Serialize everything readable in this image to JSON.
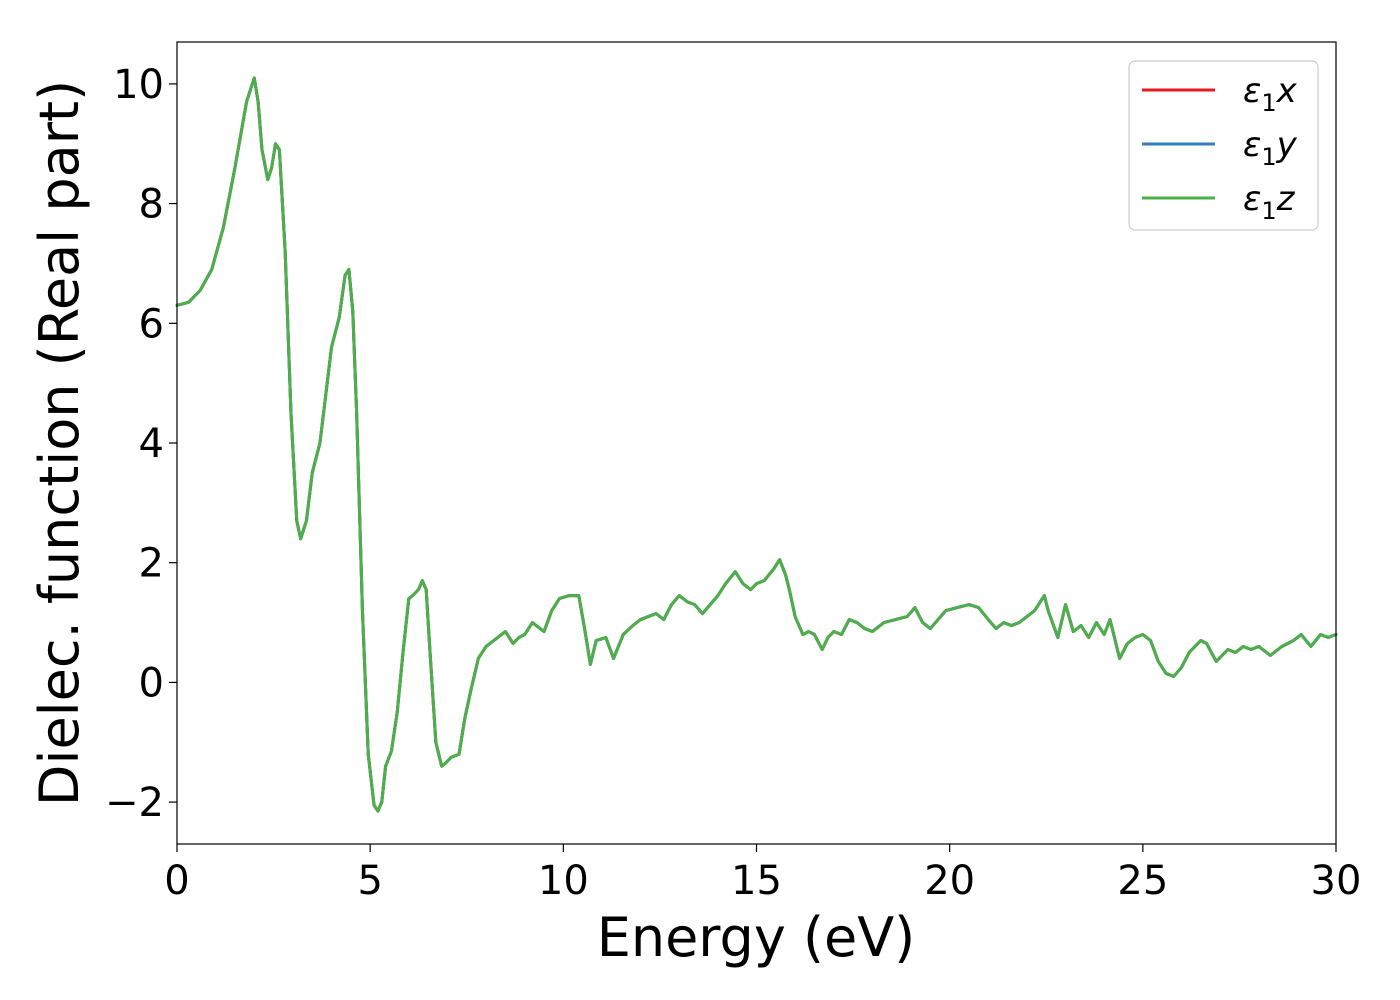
{
  "chart_data": {
    "type": "line",
    "title": "",
    "xlabel": "Energy (eV)",
    "ylabel": "Dielec. function (Real part)",
    "xlim": [
      0,
      30
    ],
    "ylim": [
      -2.7,
      10.7
    ],
    "xticks": [
      0,
      5,
      10,
      15,
      20,
      25,
      30
    ],
    "xtick_labels": [
      "0",
      "5",
      "10",
      "15",
      "20",
      "25",
      "30"
    ],
    "yticks": [
      -2,
      0,
      2,
      4,
      6,
      8,
      10
    ],
    "ytick_labels": [
      "−2",
      "0",
      "2",
      "4",
      "6",
      "8",
      "10"
    ],
    "grid": false,
    "legend_position": "top-right",
    "legend_label_base": "ε",
    "legend_label_sub": "1",
    "series": [
      {
        "name": "ε1x",
        "suffix": "x",
        "color": "#e41a1c",
        "ref": "shared"
      },
      {
        "name": "ε1y",
        "suffix": "y",
        "color": "#377eb8",
        "ref": "shared"
      },
      {
        "name": "ε1z",
        "suffix": "z",
        "color": "#4daf4a",
        "ref": "shared"
      }
    ],
    "x": [
      0,
      0.3,
      0.6,
      0.9,
      1.2,
      1.5,
      1.8,
      2.0,
      2.1,
      2.2,
      2.35,
      2.45,
      2.55,
      2.65,
      2.8,
      2.95,
      3.1,
      3.2,
      3.35,
      3.5,
      3.7,
      3.85,
      4.0,
      4.2,
      4.35,
      4.45,
      4.55,
      4.65,
      4.8,
      4.95,
      5.1,
      5.2,
      5.3,
      5.4,
      5.55,
      5.7,
      5.85,
      6.0,
      6.1,
      6.25,
      6.35,
      6.45,
      6.55,
      6.7,
      6.85,
      6.95,
      7.1,
      7.3,
      7.45,
      7.6,
      7.8,
      8.0,
      8.2,
      8.5,
      8.7,
      8.85,
      9.0,
      9.2,
      9.5,
      9.7,
      9.9,
      10.15,
      10.4,
      10.55,
      10.7,
      10.85,
      11.1,
      11.3,
      11.55,
      11.8,
      12.0,
      12.2,
      12.4,
      12.6,
      12.8,
      13.0,
      13.2,
      13.4,
      13.6,
      13.8,
      14.0,
      14.2,
      14.45,
      14.65,
      14.85,
      15.0,
      15.2,
      15.45,
      15.6,
      15.75,
      15.85,
      16.0,
      16.2,
      16.35,
      16.5,
      16.7,
      16.85,
      17.0,
      17.2,
      17.4,
      17.6,
      17.8,
      18.0,
      18.3,
      18.6,
      18.9,
      19.1,
      19.3,
      19.5,
      19.7,
      19.9,
      20.2,
      20.5,
      20.75,
      21.0,
      21.2,
      21.4,
      21.6,
      21.8,
      22.0,
      22.2,
      22.45,
      22.55,
      22.8,
      23.0,
      23.2,
      23.4,
      23.6,
      23.8,
      24.0,
      24.15,
      24.4,
      24.6,
      24.8,
      25.0,
      25.2,
      25.4,
      25.6,
      25.8,
      26.0,
      26.2,
      26.5,
      26.65,
      26.9,
      27.2,
      27.4,
      27.6,
      27.8,
      28.0,
      28.3,
      28.6,
      28.9,
      29.1,
      29.35,
      29.6,
      29.8,
      30.0
    ],
    "y": [
      6.3,
      6.35,
      6.55,
      6.9,
      7.6,
      8.6,
      9.7,
      10.1,
      9.7,
      8.9,
      8.4,
      8.6,
      9.0,
      8.9,
      7.2,
      4.5,
      2.7,
      2.4,
      2.7,
      3.5,
      4.0,
      4.8,
      5.6,
      6.1,
      6.8,
      6.9,
      6.2,
      4.5,
      1.2,
      -1.2,
      -2.05,
      -2.15,
      -2.0,
      -1.4,
      -1.15,
      -0.5,
      0.5,
      1.4,
      1.45,
      1.55,
      1.7,
      1.55,
      0.5,
      -1.0,
      -1.4,
      -1.35,
      -1.25,
      -1.2,
      -0.6,
      -0.15,
      0.4,
      0.6,
      0.7,
      0.85,
      0.65,
      0.75,
      0.8,
      1.0,
      0.85,
      1.2,
      1.4,
      1.45,
      1.45,
      0.9,
      0.3,
      0.7,
      0.75,
      0.4,
      0.8,
      0.95,
      1.05,
      1.1,
      1.15,
      1.05,
      1.3,
      1.45,
      1.35,
      1.3,
      1.15,
      1.3,
      1.45,
      1.65,
      1.85,
      1.65,
      1.55,
      1.65,
      1.7,
      1.9,
      2.05,
      1.8,
      1.55,
      1.1,
      0.8,
      0.85,
      0.8,
      0.55,
      0.75,
      0.85,
      0.8,
      1.05,
      1.0,
      0.9,
      0.85,
      1.0,
      1.05,
      1.1,
      1.25,
      1.0,
      0.9,
      1.05,
      1.2,
      1.25,
      1.3,
      1.25,
      1.05,
      0.9,
      1.0,
      0.95,
      1.0,
      1.1,
      1.2,
      1.45,
      1.2,
      0.75,
      1.3,
      0.85,
      0.95,
      0.75,
      1.0,
      0.8,
      1.05,
      0.4,
      0.65,
      0.75,
      0.8,
      0.7,
      0.35,
      0.15,
      0.1,
      0.25,
      0.5,
      0.7,
      0.65,
      0.35,
      0.55,
      0.5,
      0.6,
      0.55,
      0.6,
      0.45,
      0.6,
      0.7,
      0.8,
      0.6,
      0.8,
      0.75,
      0.8
    ]
  }
}
